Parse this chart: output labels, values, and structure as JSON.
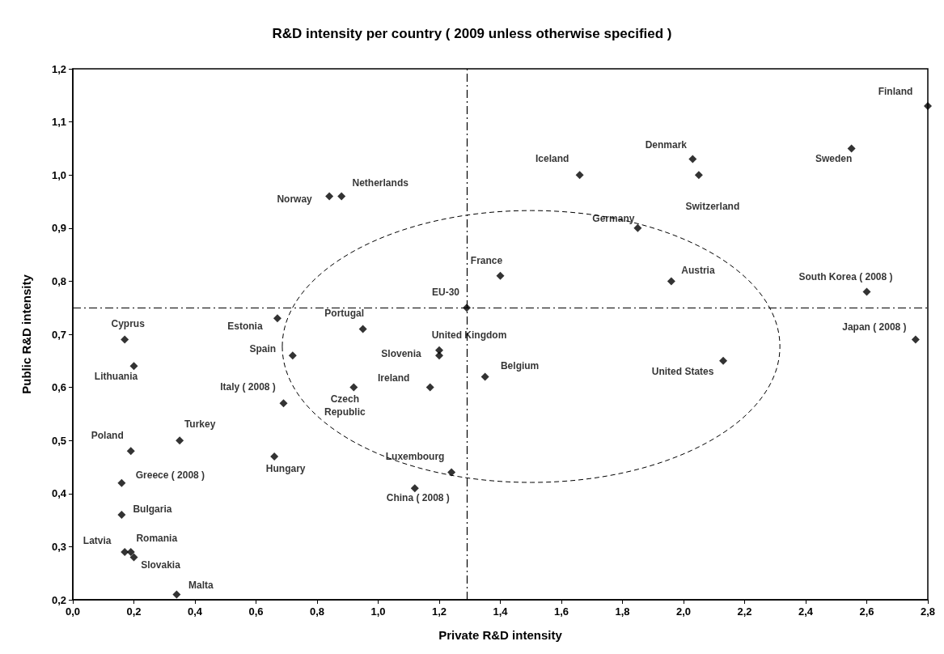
{
  "chart_data": {
    "type": "scatter",
    "title": "R&D intensity per country ( 2009 unless otherwise specified )",
    "xlabel": "Private R&D intensity",
    "ylabel": "Public R&D intensity",
    "xlim": [
      0,
      2.8
    ],
    "ylim": [
      0.2,
      1.2
    ],
    "xticks": [
      {
        "value": 0,
        "label": "0,0"
      },
      {
        "value": 0.2,
        "label": "0,2"
      },
      {
        "value": 0.4,
        "label": "0,4"
      },
      {
        "value": 0.6,
        "label": "0,6"
      },
      {
        "value": 0.8,
        "label": "0,8"
      },
      {
        "value": 1,
        "label": "1,0"
      },
      {
        "value": 1.2,
        "label": "1,2"
      },
      {
        "value": 1.4,
        "label": "1,4"
      },
      {
        "value": 1.6,
        "label": "1,6"
      },
      {
        "value": 1.8,
        "label": "1,8"
      },
      {
        "value": 2,
        "label": "2,0"
      },
      {
        "value": 2.2,
        "label": "2,2"
      },
      {
        "value": 2.4,
        "label": "2,4"
      },
      {
        "value": 2.6,
        "label": "2,6"
      },
      {
        "value": 2.8,
        "label": "2,8"
      }
    ],
    "yticks": [
      {
        "value": 0.2,
        "label": "0,2"
      },
      {
        "value": 0.3,
        "label": "0,3"
      },
      {
        "value": 0.4,
        "label": "0,4"
      },
      {
        "value": 0.5,
        "label": "0,5"
      },
      {
        "value": 0.6,
        "label": "0,6"
      },
      {
        "value": 0.7,
        "label": "0,7"
      },
      {
        "value": 0.8,
        "label": "0,8"
      },
      {
        "value": 0.9,
        "label": "0,9"
      },
      {
        "value": 1,
        "label": "1,0"
      },
      {
        "value": 1.1,
        "label": "1,1"
      },
      {
        "value": 1.2,
        "label": "1,2"
      }
    ],
    "grid": false,
    "legend": false,
    "marker": "diamond",
    "ref_lines": [
      {
        "axis": "x",
        "value": 1.29,
        "color": "#000000",
        "line_style": "dashdot"
      },
      {
        "axis": "y",
        "value": 0.75,
        "color": "#000000",
        "line_style": "dashdot"
      }
    ],
    "series": [
      {
        "name": "Finland",
        "color": "#000000",
        "x": [
          2.8
        ],
        "values": [
          1.13
        ]
      },
      {
        "name": "Sweden",
        "color": "#000000",
        "x": [
          2.55
        ],
        "values": [
          1.05
        ]
      },
      {
        "name": "Iceland",
        "color": "#000000",
        "x": [
          1.66
        ],
        "values": [
          1.0
        ]
      },
      {
        "name": "Denmark",
        "color": "#000000",
        "x": [
          2.03
        ],
        "values": [
          1.03
        ]
      },
      {
        "name": "Switzerland",
        "color": "#000000",
        "x": [
          2.05
        ],
        "values": [
          1.0
        ]
      },
      {
        "name": "Germany",
        "color": "#000000",
        "x": [
          1.85
        ],
        "values": [
          0.9
        ]
      },
      {
        "name": "Austria",
        "color": "#000000",
        "x": [
          1.96
        ],
        "values": [
          0.8
        ]
      },
      {
        "name": "France",
        "color": "#000000",
        "x": [
          1.4
        ],
        "values": [
          0.81
        ]
      },
      {
        "name": "South Korea ( 2008 )",
        "color": "#000000",
        "x": [
          2.6
        ],
        "values": [
          0.78
        ]
      },
      {
        "name": "Japan ( 2008 )",
        "color": "#000000",
        "x": [
          2.76
        ],
        "values": [
          0.69
        ]
      },
      {
        "name": "United States",
        "color": "#000000",
        "x": [
          2.13
        ],
        "values": [
          0.65
        ]
      },
      {
        "name": "EU-30",
        "color": "#000000",
        "x": [
          1.29
        ],
        "values": [
          0.75
        ]
      },
      {
        "name": "Norway",
        "color": "#000000",
        "x": [
          0.84
        ],
        "values": [
          0.96
        ]
      },
      {
        "name": "Netherlands",
        "color": "#000000",
        "x": [
          0.88
        ],
        "values": [
          0.96
        ]
      },
      {
        "name": "Estonia",
        "color": "#000000",
        "x": [
          0.67
        ],
        "values": [
          0.73
        ]
      },
      {
        "name": "Portugal",
        "color": "#000000",
        "x": [
          0.95
        ],
        "values": [
          0.71
        ]
      },
      {
        "name": "Spain",
        "color": "#000000",
        "x": [
          0.72
        ],
        "values": [
          0.66
        ]
      },
      {
        "name": "Italy ( 2008 )",
        "color": "#000000",
        "x": [
          0.69
        ],
        "values": [
          0.57
        ]
      },
      {
        "name": "Czech\nRepublic",
        "color": "#000000",
        "x": [
          0.92
        ],
        "values": [
          0.6
        ]
      },
      {
        "name": "United Kingdom",
        "color": "#000000",
        "x": [
          1.2
        ],
        "values": [
          0.67
        ]
      },
      {
        "name": "Slovenia",
        "color": "#000000",
        "x": [
          1.2
        ],
        "values": [
          0.66
        ]
      },
      {
        "name": "Ireland",
        "color": "#000000",
        "x": [
          1.17
        ],
        "values": [
          0.6
        ]
      },
      {
        "name": "Belgium",
        "color": "#000000",
        "x": [
          1.35
        ],
        "values": [
          0.62
        ]
      },
      {
        "name": "Luxembourg",
        "color": "#000000",
        "x": [
          1.24
        ],
        "values": [
          0.44
        ]
      },
      {
        "name": "China ( 2008 )",
        "color": "#000000",
        "x": [
          1.12
        ],
        "values": [
          0.41
        ]
      },
      {
        "name": "Hungary",
        "color": "#000000",
        "x": [
          0.66
        ],
        "values": [
          0.47
        ]
      },
      {
        "name": "Turkey",
        "color": "#000000",
        "x": [
          0.35
        ],
        "values": [
          0.5
        ]
      },
      {
        "name": "Poland",
        "color": "#000000",
        "x": [
          0.19
        ],
        "values": [
          0.48
        ]
      },
      {
        "name": "Greece ( 2008 )",
        "color": "#000000",
        "x": [
          0.16
        ],
        "values": [
          0.42
        ]
      },
      {
        "name": "Bulgaria",
        "color": "#000000",
        "x": [
          0.16
        ],
        "values": [
          0.36
        ]
      },
      {
        "name": "Cyprus",
        "color": "#000000",
        "x": [
          0.17
        ],
        "values": [
          0.69
        ]
      },
      {
        "name": "Lithuania",
        "color": "#000000",
        "x": [
          0.2
        ],
        "values": [
          0.64
        ]
      },
      {
        "name": "Latvia",
        "color": "#000000",
        "x": [
          0.17
        ],
        "values": [
          0.29
        ]
      },
      {
        "name": "Romania",
        "color": "#000000",
        "x": [
          0.19
        ],
        "values": [
          0.29
        ]
      },
      {
        "name": "Slovakia",
        "color": "#000000",
        "x": [
          0.2
        ],
        "values": [
          0.28
        ]
      },
      {
        "name": "Malta",
        "color": "#000000",
        "x": [
          0.34
        ],
        "values": [
          0.21
        ]
      }
    ]
  }
}
